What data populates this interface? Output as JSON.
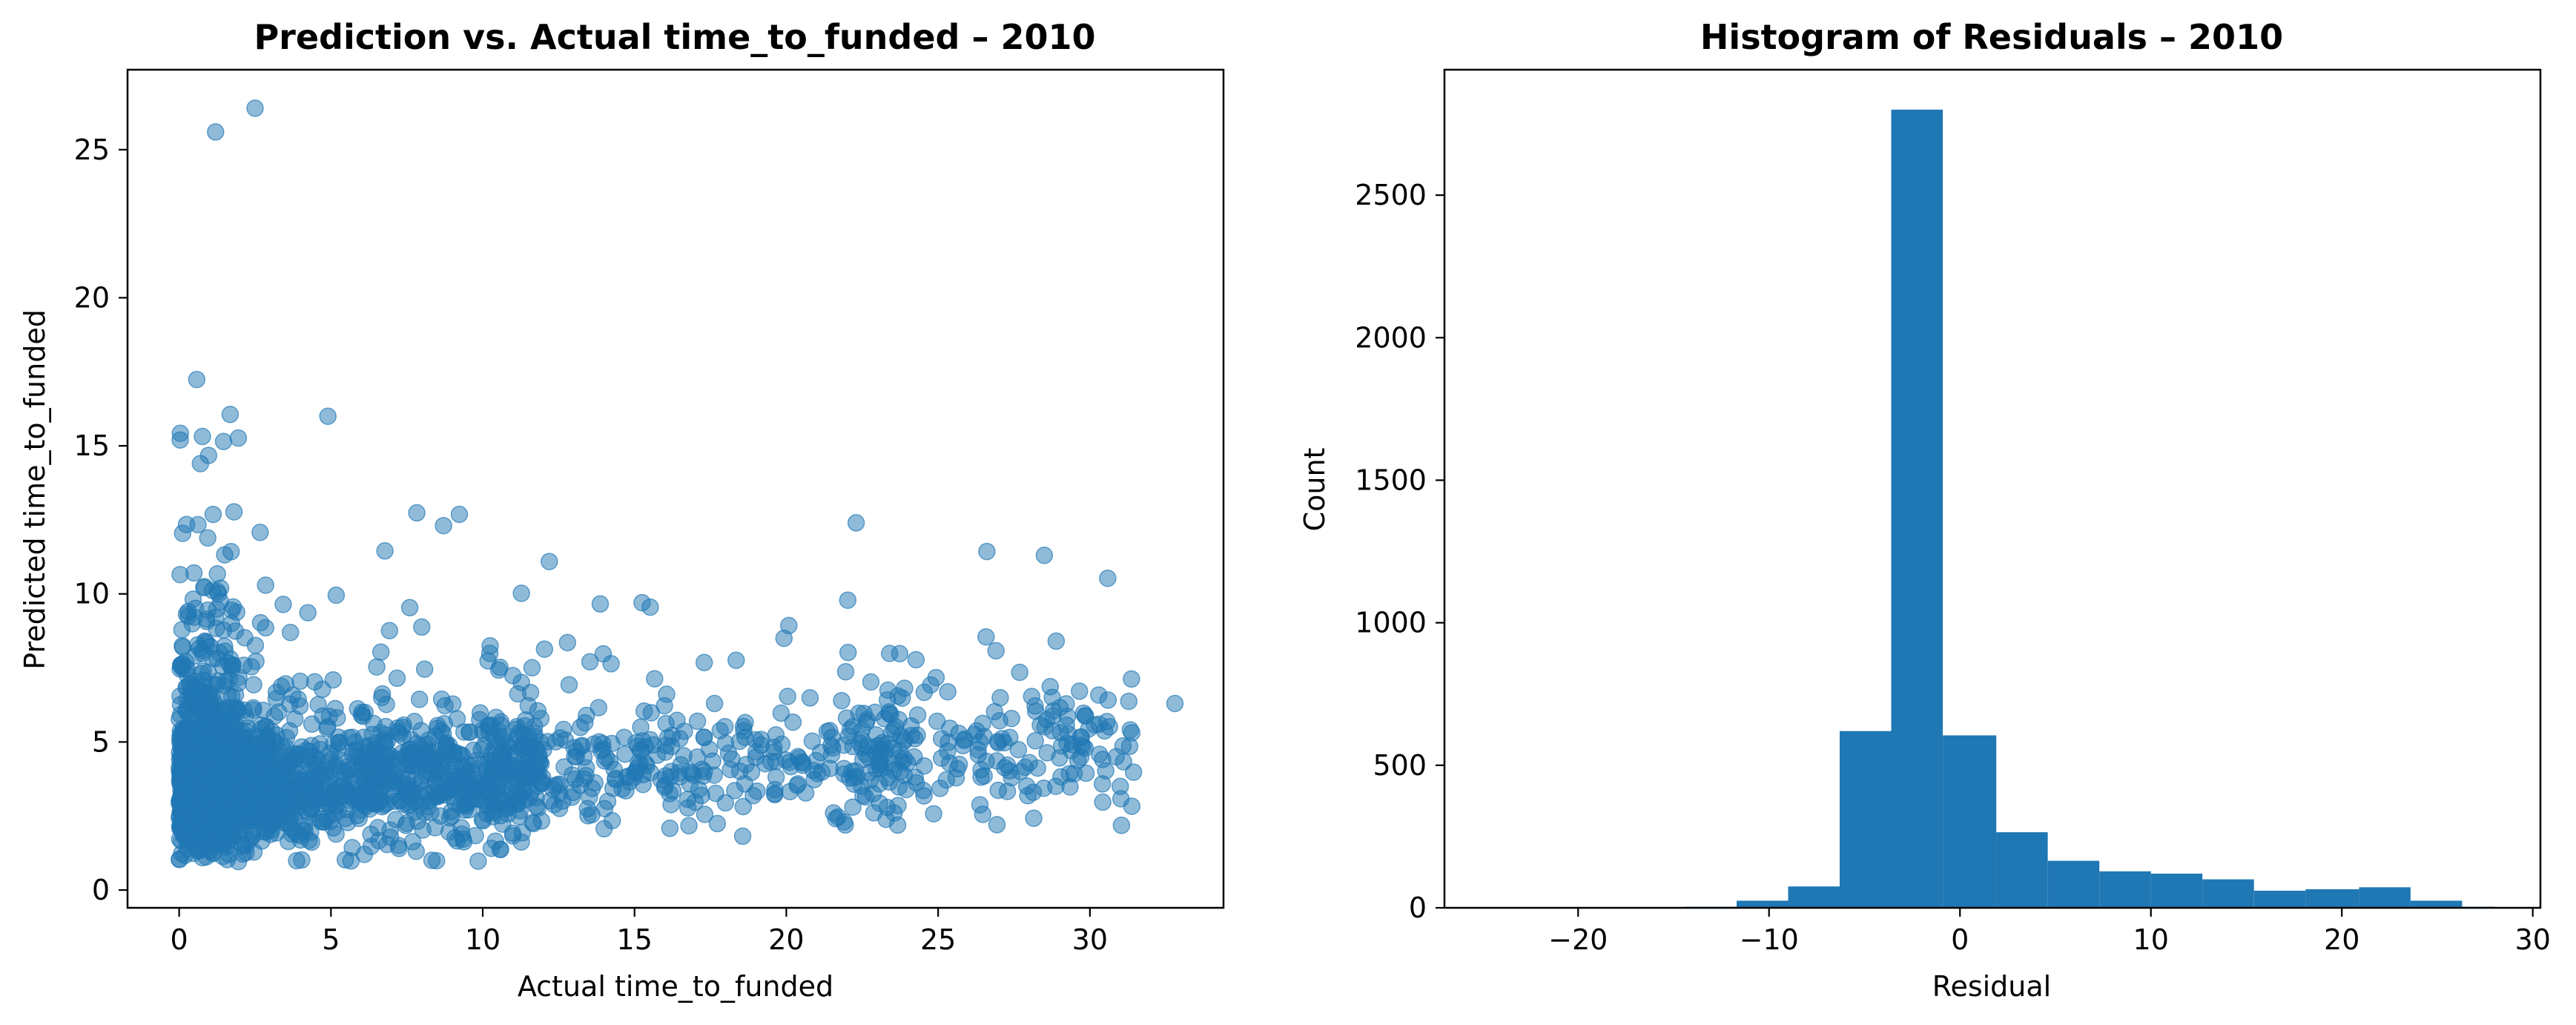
{
  "chart_data": [
    {
      "type": "scatter",
      "title": "Prediction vs. Actual time_to_funded – 2010",
      "xlabel": "Actual time_to_funded",
      "ylabel": "Predicted time_to_funded",
      "xlim": [
        -1.7,
        34.4
      ],
      "ylim": [
        -0.6,
        27.7
      ],
      "xticks": [
        "0",
        "5",
        "10",
        "15",
        "20",
        "25",
        "30"
      ],
      "yticks": [
        "0",
        "5",
        "10",
        "15",
        "20",
        "25"
      ],
      "marker_color": "#1f77b4",
      "alpha": 0.5,
      "grid": false,
      "outliers": [
        [
          1.2,
          25.6
        ],
        [
          2.5,
          26.4
        ],
        [
          4.9,
          16.0
        ],
        [
          0.7,
          14.4
        ],
        [
          22.3,
          12.4
        ],
        [
          28.5,
          11.3
        ],
        [
          32.8,
          6.3
        ],
        [
          31.0,
          3.5
        ]
      ],
      "points_sampled": 2600
    },
    {
      "type": "bar",
      "title": "Histogram of Residuals – 2010",
      "xlabel": "Residual",
      "ylabel": "Count",
      "xlim": [
        -27.0,
        30.4
      ],
      "ylim": [
        0,
        2940
      ],
      "xticks": [
        "−20",
        "−10",
        "0",
        "10",
        "20",
        "30"
      ],
      "yticks": [
        "0",
        "500",
        "1000",
        "1500",
        "2000",
        "2500"
      ],
      "bar_color": "#1f77b4",
      "bin_edges": [
        -25.3,
        -22.6,
        -19.9,
        -17.2,
        -14.4,
        -11.7,
        -9.0,
        -6.3,
        -3.6,
        -0.9,
        1.9,
        4.6,
        7.3,
        10.0,
        12.7,
        15.4,
        18.1,
        20.9,
        23.6,
        26.3,
        28.0
      ],
      "counts": [
        0,
        0,
        1,
        1,
        4,
        25,
        75,
        620,
        2800,
        605,
        265,
        165,
        128,
        120,
        100,
        60,
        65,
        72,
        25,
        4
      ]
    }
  ]
}
